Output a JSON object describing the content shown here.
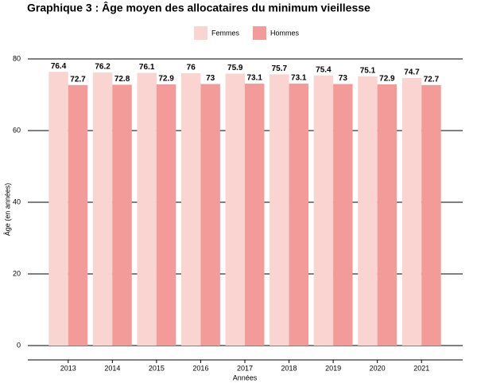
{
  "chart_data": {
    "type": "bar",
    "title": "Graphique 3 : Âge moyen des allocataires du minimum vieillesse",
    "x_label": "Années",
    "y_label": "Âge (en années)",
    "categories": [
      "2013",
      "2014",
      "2015",
      "2016",
      "2017",
      "2018",
      "2019",
      "2020",
      "2021"
    ],
    "series": [
      {
        "name": "Femmes",
        "color": "#f9d4d1",
        "values": [
          76.4,
          76.2,
          76.1,
          76,
          75.9,
          75.7,
          75.4,
          75.1,
          74.7
        ]
      },
      {
        "name": "Hommes",
        "color": "#f29b98",
        "values": [
          72.7,
          72.8,
          72.9,
          73,
          73.1,
          73.1,
          73,
          72.9,
          72.7
        ]
      }
    ],
    "ylim": [
      -4,
      80
    ],
    "yticks": [
      0,
      20,
      40,
      60,
      80
    ],
    "grid": true,
    "legend": "top"
  }
}
